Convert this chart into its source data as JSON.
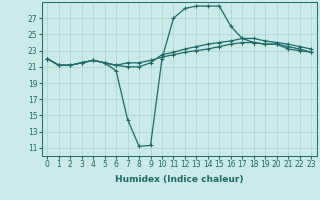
{
  "xlabel": "Humidex (Indice chaleur)",
  "ylabel": "",
  "bg_color": "#cceae8",
  "line_color": "#1a6b6b",
  "grid_color": "#aad4d0",
  "hours": [
    0,
    1,
    2,
    3,
    4,
    5,
    6,
    7,
    8,
    9,
    10,
    11,
    12,
    13,
    14,
    15,
    16,
    17,
    18,
    19,
    20,
    21,
    22,
    23
  ],
  "line1": [
    22.0,
    21.2,
    21.2,
    21.5,
    21.8,
    21.5,
    20.5,
    14.5,
    11.2,
    11.3,
    22.0,
    27.0,
    28.2,
    28.5,
    28.5,
    28.5,
    26.0,
    24.5,
    24.0,
    23.8,
    23.8,
    23.2,
    23.0,
    22.8
  ],
  "line2": [
    22.0,
    21.2,
    21.2,
    21.5,
    21.8,
    21.5,
    21.2,
    21.0,
    21.0,
    21.5,
    22.5,
    22.8,
    23.2,
    23.5,
    23.8,
    24.0,
    24.2,
    24.5,
    24.5,
    24.2,
    24.0,
    23.8,
    23.5,
    23.2
  ],
  "line3": [
    22.0,
    21.2,
    21.2,
    21.5,
    21.8,
    21.5,
    21.2,
    21.5,
    21.5,
    21.8,
    22.2,
    22.5,
    22.8,
    23.0,
    23.2,
    23.5,
    23.8,
    24.0,
    24.0,
    23.8,
    23.8,
    23.5,
    23.2,
    22.8
  ],
  "yticks": [
    11,
    13,
    15,
    17,
    19,
    21,
    23,
    25,
    27
  ],
  "ylim": [
    10.0,
    29.0
  ],
  "xlim": [
    -0.5,
    23.5
  ],
  "marker": "+",
  "markersize": 3.5,
  "linewidth": 0.9,
  "label_fontsize": 6.5,
  "tick_fontsize": 5.5
}
